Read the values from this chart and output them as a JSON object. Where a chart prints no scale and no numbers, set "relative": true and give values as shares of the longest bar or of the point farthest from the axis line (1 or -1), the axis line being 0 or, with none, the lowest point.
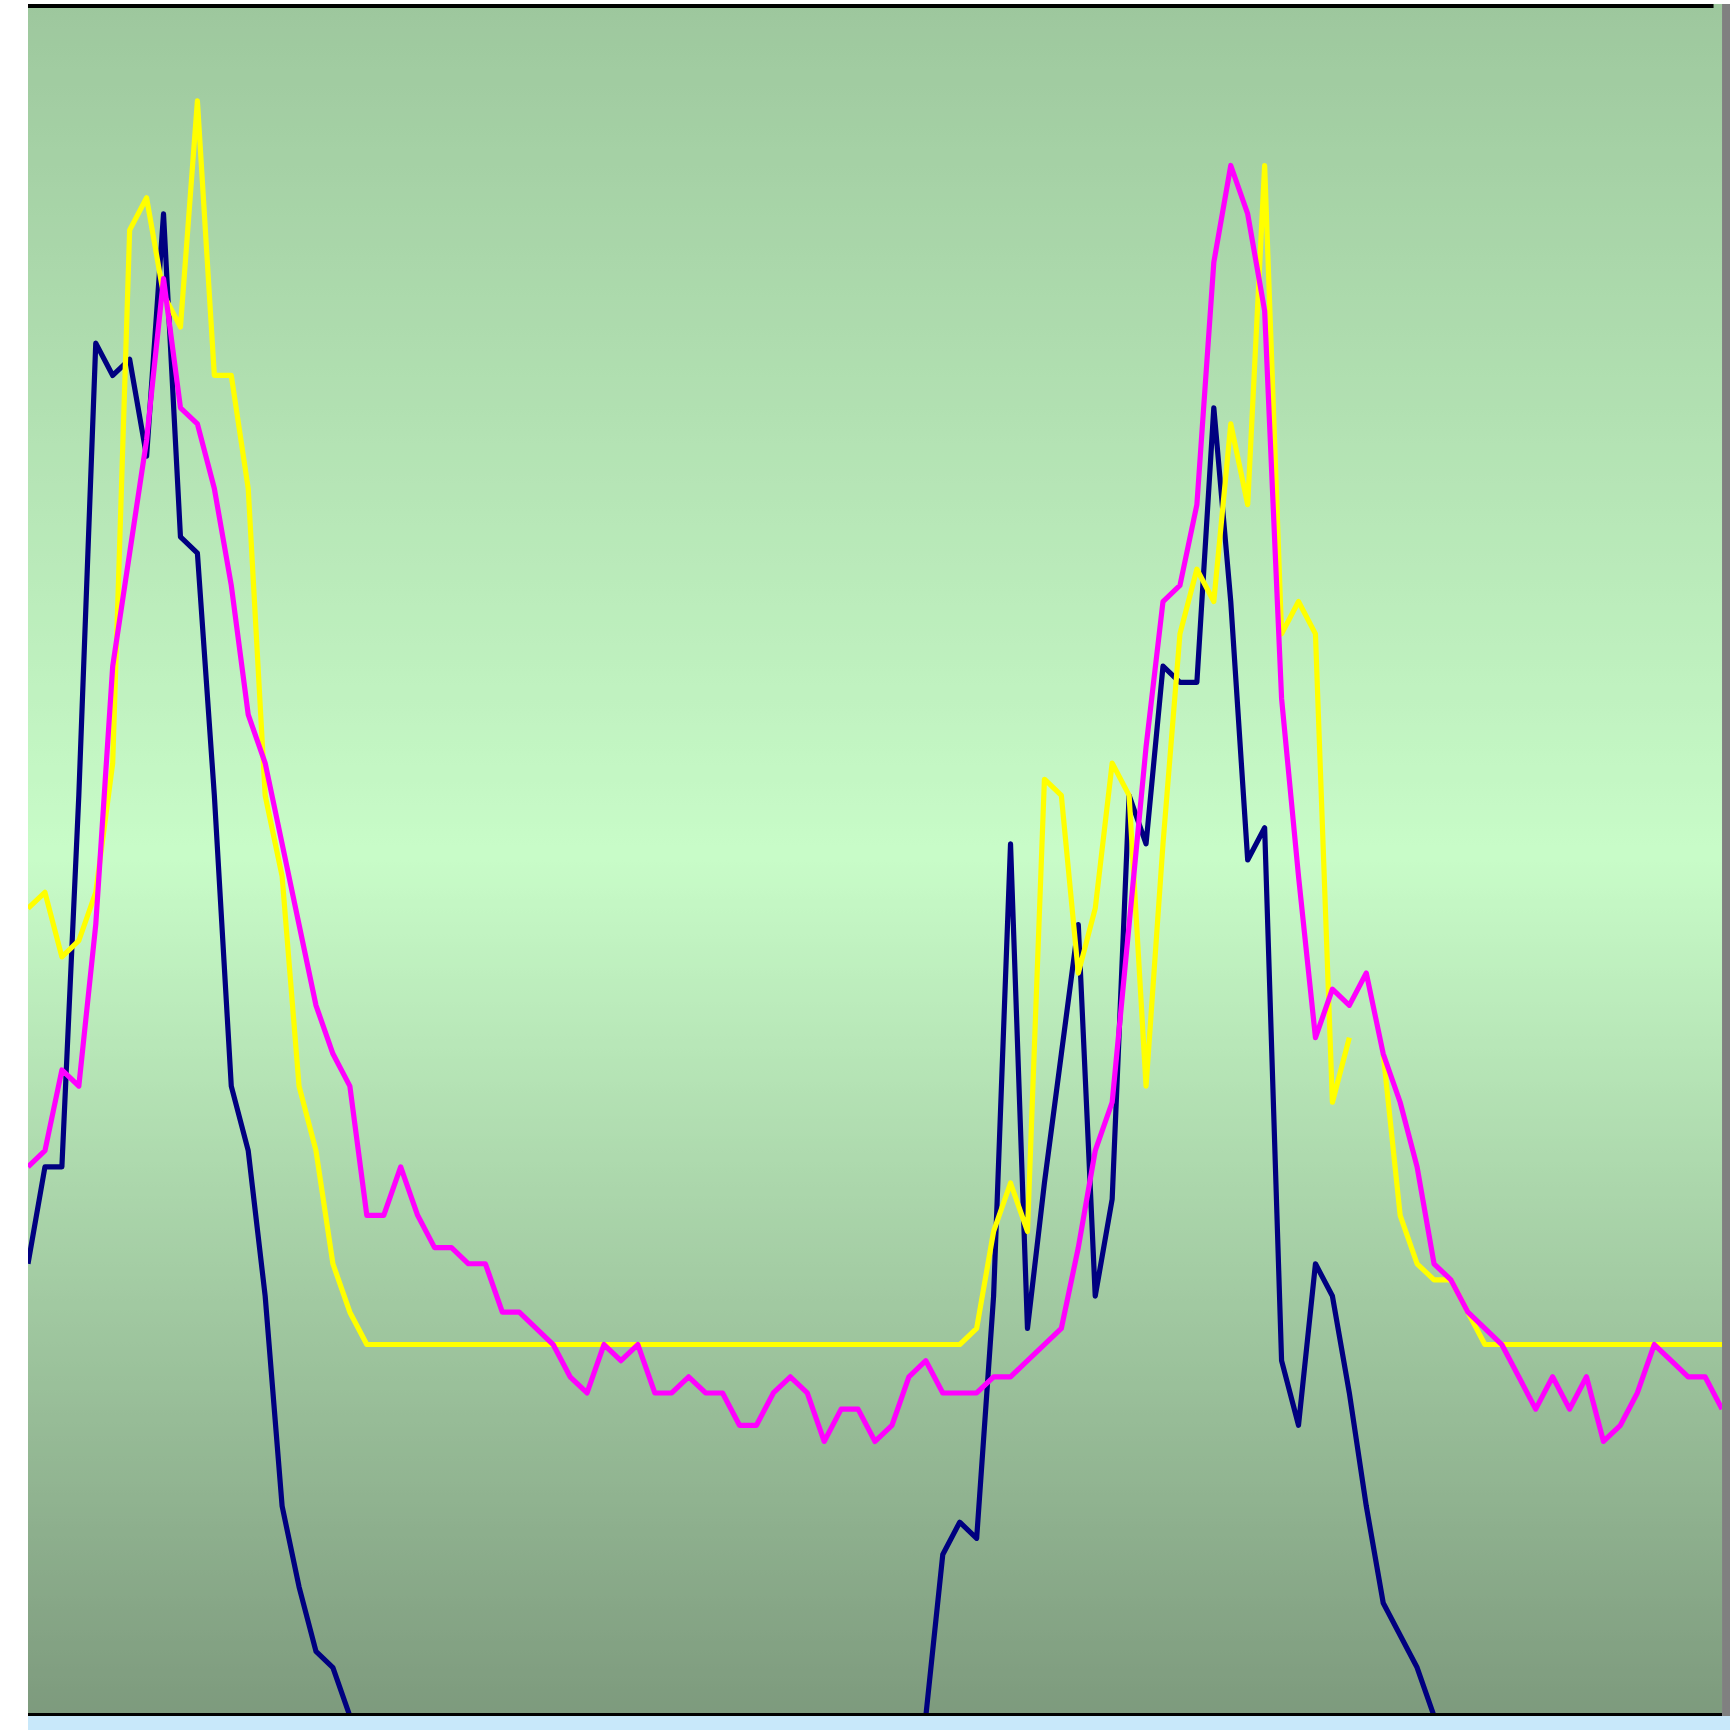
{
  "chart_data": {
    "type": "line",
    "relative": true,
    "categories": [
      null,
      null,
      null,
      null,
      null,
      null,
      null,
      null,
      null,
      null,
      null,
      null,
      null,
      null,
      null,
      null,
      null,
      null,
      null,
      null,
      null,
      null,
      null,
      null,
      null,
      null,
      null,
      null,
      null,
      null,
      null,
      null,
      null,
      null,
      null,
      null,
      null,
      null,
      null,
      null,
      null,
      null,
      null,
      null,
      null,
      null,
      null,
      null,
      null,
      null,
      null,
      null,
      null,
      null,
      null,
      null,
      null,
      null,
      null,
      null,
      null,
      null,
      null,
      null,
      null,
      null,
      null,
      null,
      null,
      null,
      null,
      null,
      null,
      null,
      null,
      null,
      null,
      null,
      null,
      null,
      null,
      null,
      null,
      null,
      null,
      null,
      null,
      null,
      null,
      null,
      null,
      null,
      null,
      null,
      null,
      null,
      null,
      null,
      null,
      null,
      null
    ],
    "series": [
      {
        "color": "#000080",
        "values": [
          0.28,
          0.34,
          0.34,
          0.57,
          0.85,
          0.83,
          0.84,
          0.78,
          0.93,
          0.73,
          0.72,
          0.57,
          0.39,
          0.35,
          0.26,
          0.13,
          0.08,
          0.04,
          0.03,
          0.0,
          null,
          null,
          null,
          null,
          null,
          null,
          null,
          null,
          null,
          null,
          null,
          null,
          null,
          null,
          null,
          null,
          null,
          null,
          null,
          null,
          null,
          null,
          null,
          null,
          null,
          null,
          null,
          null,
          null,
          null,
          null,
          null,
          null,
          0.0,
          0.1,
          0.12,
          0.11,
          0.26,
          0.54,
          0.24,
          0.33,
          0.41,
          0.49,
          0.26,
          0.32,
          0.57,
          0.54,
          0.65,
          0.64,
          0.64,
          0.81,
          0.69,
          0.53,
          0.55,
          0.22,
          0.18,
          0.28,
          0.26,
          0.2,
          0.13,
          0.07,
          0.05,
          0.03,
          0.0,
          null,
          null,
          null,
          null,
          null,
          null,
          null,
          null,
          null,
          null,
          null,
          null,
          null,
          null,
          null,
          null,
          null
        ]
      },
      {
        "color": "#ffff00",
        "values": [
          0.5,
          0.51,
          0.47,
          0.48,
          0.51,
          0.59,
          0.92,
          0.94,
          0.88,
          0.86,
          1.0,
          0.83,
          0.83,
          0.76,
          0.57,
          0.52,
          0.39,
          0.35,
          0.28,
          0.25,
          0.23,
          0.23,
          0.23,
          0.23,
          0.23,
          0.23,
          0.23,
          0.23,
          0.23,
          0.23,
          0.23,
          0.23,
          0.23,
          0.23,
          0.23,
          0.23,
          0.23,
          0.23,
          0.23,
          0.23,
          0.23,
          0.23,
          0.23,
          0.23,
          0.23,
          0.23,
          0.23,
          0.23,
          0.23,
          0.23,
          0.23,
          0.23,
          0.23,
          0.23,
          0.23,
          0.23,
          0.24,
          0.3,
          0.33,
          0.3,
          0.58,
          0.57,
          0.46,
          0.5,
          0.59,
          0.57,
          0.39,
          0.54,
          0.67,
          0.71,
          0.69,
          0.8,
          0.75,
          0.96,
          0.67,
          0.69,
          0.67,
          0.38,
          0.42,
          null,
          0.41,
          0.31,
          0.28,
          0.27,
          0.27,
          0.25,
          0.23,
          0.23,
          0.23,
          0.23,
          0.23,
          0.23,
          0.23,
          0.23,
          0.23,
          0.23,
          0.23,
          0.23,
          0.23,
          0.23,
          0.23
        ]
      },
      {
        "color": "#ff00ff",
        "values": [
          0.34,
          0.35,
          0.4,
          0.39,
          0.49,
          0.65,
          0.72,
          0.79,
          0.89,
          0.81,
          0.8,
          0.76,
          0.7,
          0.62,
          0.59,
          0.54,
          0.49,
          0.44,
          0.41,
          0.39,
          0.31,
          0.31,
          0.34,
          0.31,
          0.29,
          0.29,
          0.28,
          0.28,
          0.25,
          0.25,
          0.24,
          0.23,
          0.21,
          0.2,
          0.23,
          0.22,
          0.23,
          0.2,
          0.2,
          0.21,
          0.2,
          0.2,
          0.18,
          0.18,
          0.2,
          0.21,
          0.2,
          0.17,
          0.19,
          0.19,
          0.17,
          0.18,
          0.21,
          0.22,
          0.2,
          0.2,
          0.2,
          0.21,
          0.21,
          0.22,
          0.23,
          0.24,
          0.29,
          0.35,
          0.38,
          0.49,
          0.6,
          0.69,
          0.7,
          0.75,
          0.9,
          0.96,
          0.93,
          0.87,
          0.63,
          0.52,
          0.42,
          0.45,
          0.44,
          0.46,
          0.41,
          0.38,
          0.34,
          0.28,
          0.27,
          0.25,
          0.24,
          0.23,
          0.21,
          0.19,
          0.21,
          0.19,
          0.21,
          0.17,
          0.18,
          0.2,
          0.23,
          0.22,
          0.21,
          0.21,
          0.19
        ]
      }
    ]
  }
}
